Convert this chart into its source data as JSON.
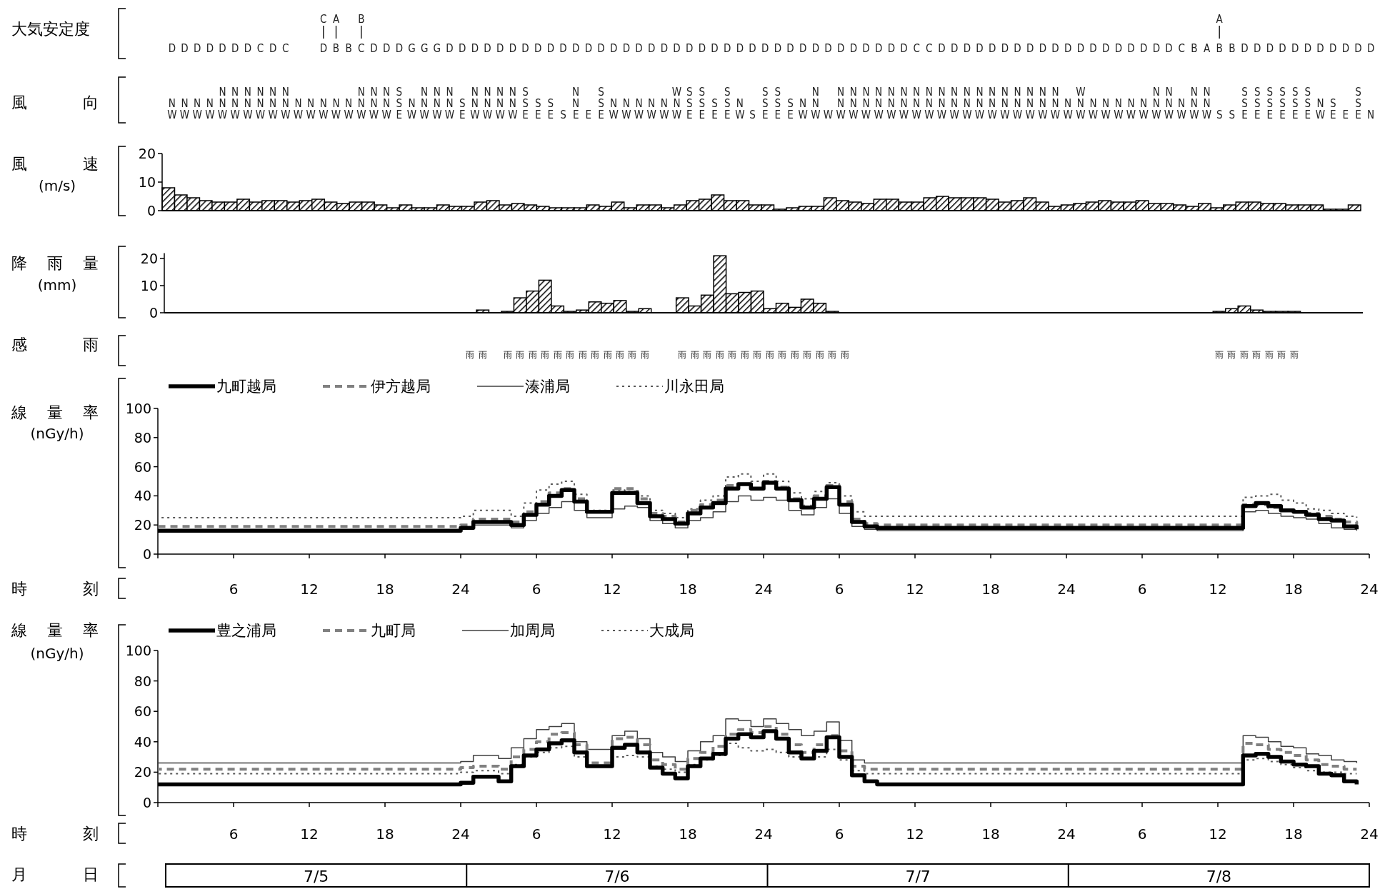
{
  "chart_data": [
    {
      "type": "other",
      "ylabel": "大気安定度",
      "cell_labels": [
        [
          null,
          null,
          null,
          null,
          null,
          null,
          null,
          null,
          null,
          null,
          null,
          null,
          "C",
          "A",
          null,
          "B",
          null,
          null,
          null,
          null,
          null,
          null,
          null,
          null,
          null,
          null,
          null,
          null,
          null,
          null,
          null,
          null,
          null,
          null,
          null,
          null,
          null,
          null,
          null,
          null,
          null,
          null,
          null,
          null,
          null,
          null,
          null,
          null,
          null,
          null,
          null,
          null,
          null,
          null,
          null,
          null,
          null,
          null,
          null,
          null,
          null,
          null,
          null,
          null,
          null,
          null,
          null,
          null,
          null,
          null,
          null,
          null,
          null,
          null,
          null,
          null,
          null,
          null,
          null,
          null,
          null,
          null,
          null,
          "A",
          null,
          null,
          null,
          null,
          null,
          null,
          null,
          null,
          null,
          null,
          null,
          null
        ],
        [
          "D",
          "D",
          "D",
          "D",
          "D",
          "D",
          "D",
          "C",
          "D",
          "C",
          null,
          null,
          "D",
          "B",
          "B",
          "C",
          "D",
          "D",
          "D",
          "G",
          "G",
          "G",
          "D",
          "D",
          "D",
          "D",
          "D",
          "D",
          "D",
          "D",
          "D",
          "D",
          "D",
          "D",
          "D",
          "D",
          "D",
          "D",
          "D",
          "D",
          "D",
          "D",
          "D",
          "D",
          "D",
          "D",
          "D",
          "D",
          "D",
          "D",
          "D",
          "D",
          "D",
          "D",
          "D",
          "D",
          "D",
          "D",
          "D",
          "C",
          "C",
          "D",
          "D",
          "D",
          "D",
          "D",
          "D",
          "D",
          "D",
          "D",
          "D",
          "D",
          "D",
          "D",
          "D",
          "D",
          "D",
          "D",
          "D",
          "D",
          "C",
          "B",
          "A",
          "B",
          "B",
          "D",
          "D",
          "D",
          "D",
          "D",
          "D",
          "D",
          "D",
          "D",
          "D",
          "D"
        ]
      ]
    },
    {
      "type": "other",
      "ylabel": "風向",
      "cell_labels": [
        [
          null,
          null,
          null,
          null,
          "N",
          "N",
          "N",
          "N",
          "N",
          "N",
          null,
          null,
          null,
          null,
          null,
          "N",
          "N",
          "N",
          "S",
          null,
          "N",
          "N",
          "N",
          null,
          "N",
          "N",
          "N",
          "N",
          "S",
          null,
          null,
          null,
          "N",
          null,
          "S",
          null,
          null,
          null,
          null,
          null,
          "W",
          "S",
          "S",
          null,
          "S",
          null,
          null,
          "S",
          "S",
          null,
          null,
          "N",
          null,
          "N",
          "N",
          "N",
          "N",
          "N",
          "N",
          "N",
          "N",
          "N",
          "N",
          "N",
          "N",
          "N",
          "N",
          "N",
          "N",
          "N",
          "N",
          null,
          "W",
          null,
          null,
          null,
          null,
          null,
          "N",
          "N",
          null,
          "N",
          "N",
          null,
          null,
          "S",
          "S",
          "S",
          "S",
          "S",
          "S",
          null,
          null,
          null,
          "S",
          null
        ],
        [
          "N",
          "N",
          "N",
          "N",
          "N",
          "N",
          "N",
          "N",
          "N",
          "N",
          "N",
          "N",
          "N",
          "N",
          "N",
          "N",
          "N",
          "N",
          "S",
          "N",
          "N",
          "N",
          "N",
          "S",
          "N",
          "N",
          "N",
          "N",
          "S",
          "S",
          "S",
          null,
          "N",
          null,
          "S",
          "N",
          "N",
          "N",
          "N",
          "N",
          "N",
          "S",
          "S",
          "S",
          "S",
          "N",
          null,
          "S",
          "S",
          "S",
          "N",
          "N",
          null,
          "N",
          "N",
          "N",
          "N",
          "N",
          "N",
          "N",
          "N",
          "N",
          "N",
          "N",
          "N",
          "N",
          "N",
          "N",
          "N",
          "N",
          "N",
          "N",
          "N",
          "N",
          "N",
          "N",
          "N",
          "N",
          "N",
          "N",
          "N",
          "N",
          "N",
          null,
          null,
          "S",
          "S",
          "S",
          "S",
          "S",
          "S",
          "N",
          "S",
          null,
          "S",
          null
        ],
        [
          "W",
          "W",
          "W",
          "W",
          "W",
          "W",
          "W",
          "W",
          "W",
          "W",
          "W",
          "W",
          "W",
          "W",
          "W",
          "W",
          "W",
          "W",
          "E",
          "W",
          "W",
          "W",
          "W",
          "E",
          "W",
          "W",
          "W",
          "W",
          "E",
          "E",
          "E",
          "S",
          "E",
          "E",
          "E",
          "W",
          "W",
          "W",
          "W",
          "W",
          "W",
          "E",
          "E",
          "E",
          "E",
          "W",
          "S",
          "E",
          "E",
          "E",
          "W",
          "W",
          "W",
          "W",
          "W",
          "W",
          "W",
          "W",
          "W",
          "W",
          "W",
          "W",
          "W",
          "W",
          "W",
          "W",
          "W",
          "W",
          "W",
          "W",
          "W",
          "W",
          "W",
          "W",
          "W",
          "W",
          "W",
          "W",
          "W",
          "W",
          "W",
          "W",
          "W",
          "S",
          "S",
          "E",
          "E",
          "E",
          "E",
          "E",
          "E",
          "W",
          "E",
          "E",
          "E",
          "N"
        ]
      ]
    },
    {
      "type": "bar",
      "ylabel": "風速\n(m/s)",
      "color": "#000000",
      "ylim": [
        0,
        20
      ],
      "yticks": [
        0,
        10,
        20
      ],
      "tick_labels": "y",
      "categories": [
        null,
        null,
        null,
        null,
        null,
        null,
        null,
        null,
        null,
        null,
        null,
        null,
        null,
        null,
        null,
        null,
        null,
        null,
        null,
        null,
        null,
        null,
        null,
        null,
        null,
        null,
        null,
        null,
        null,
        null,
        null,
        null,
        null,
        null,
        null,
        null,
        null,
        null,
        null,
        null,
        null,
        null,
        null,
        null,
        null,
        null,
        null,
        null,
        null,
        null,
        null,
        null,
        null,
        null,
        null,
        null,
        null,
        null,
        null,
        null,
        null,
        null,
        null,
        null,
        null,
        null,
        null,
        null,
        null,
        null,
        null,
        null,
        null,
        null,
        null,
        null,
        null,
        null,
        null,
        null,
        null,
        null,
        null,
        null,
        null,
        null,
        null,
        null,
        null,
        null,
        null,
        null,
        null,
        null,
        null,
        null
      ],
      "values": [
        8,
        5.5,
        4.5,
        3.5,
        3,
        3,
        4,
        3,
        3.5,
        3.5,
        3,
        3.5,
        4,
        3,
        2.5,
        3,
        3,
        2,
        1,
        2,
        1,
        1,
        2,
        1.5,
        1.5,
        3,
        3.5,
        2,
        2.5,
        2,
        1.5,
        1,
        1,
        1,
        2,
        1.5,
        3,
        1,
        2,
        2,
        1,
        2,
        3.5,
        4,
        5.5,
        3.5,
        3.5,
        2,
        2,
        0.5,
        1,
        1.5,
        1.5,
        4.5,
        3.5,
        3,
        2.5,
        4,
        4,
        3,
        3,
        4.5,
        5,
        4.5,
        4.5,
        4.5,
        4,
        3,
        3.5,
        4.5,
        3,
        1.5,
        2,
        2.5,
        3,
        3.5,
        3,
        3,
        3.5,
        2.5,
        2.5,
        2,
        1.5,
        2.5,
        1,
        2,
        3,
        3,
        2.5,
        2.5,
        2,
        2,
        2,
        0.5,
        0.5,
        2
      ]
    },
    {
      "type": "bar",
      "ylabel": "降雨量\n(mm)",
      "color": "#000000",
      "ylim": [
        0,
        22
      ],
      "yticks": [
        0,
        10,
        20
      ],
      "tick_labels": "y",
      "categories": [
        null,
        null,
        null,
        null,
        null,
        null,
        null,
        null,
        null,
        null,
        null,
        null,
        null,
        null,
        null,
        null,
        null,
        null,
        null,
        null,
        null,
        null,
        null,
        null,
        null,
        null,
        null,
        null,
        null,
        null,
        null,
        null,
        null,
        null,
        null,
        null,
        null,
        null,
        null,
        null,
        null,
        null,
        null,
        null,
        null,
        null,
        null,
        null,
        null,
        null,
        null,
        null,
        null,
        null,
        null,
        null,
        null,
        null,
        null,
        null,
        null,
        null,
        null,
        null,
        null,
        null,
        null,
        null,
        null,
        null,
        null,
        null,
        null,
        null,
        null,
        null,
        null,
        null,
        null,
        null,
        null,
        null,
        null,
        null,
        null,
        null,
        null,
        null,
        null,
        null,
        null,
        null,
        null,
        null,
        null,
        null
      ],
      "values": [
        0,
        0,
        0,
        0,
        0,
        0,
        0,
        0,
        0,
        0,
        0,
        0,
        0,
        0,
        0,
        0,
        0,
        0,
        0,
        0,
        0,
        0,
        0,
        0,
        0,
        1,
        0,
        0.5,
        5.5,
        8,
        12,
        2.5,
        0.5,
        1,
        4,
        3.5,
        4.5,
        0.5,
        1.5,
        0,
        0,
        5.5,
        2.5,
        6.5,
        21,
        7,
        7.5,
        8,
        1.5,
        3.5,
        2,
        5,
        3.5,
        0.5,
        0,
        0,
        0,
        0,
        0,
        0,
        0,
        0,
        0,
        0,
        0,
        0,
        0,
        0,
        0,
        0,
        0,
        0,
        0,
        0,
        0,
        0,
        0,
        0,
        0,
        0,
        0,
        0,
        0,
        0,
        0.5,
        1.5,
        2.5,
        1,
        0.5,
        0.5,
        0.5,
        0,
        0,
        0,
        0,
        0
      ]
    },
    {
      "type": "other",
      "ylabel": "感雨",
      "cell_labels": [
        [
          null,
          null,
          null,
          null,
          null,
          null,
          null,
          null,
          null,
          null,
          null,
          null,
          null,
          null,
          null,
          null,
          null,
          null,
          null,
          null,
          null,
          null,
          null,
          null,
          "雨",
          "雨",
          null,
          "雨",
          "雨",
          "雨",
          "雨",
          "雨",
          "雨",
          "雨",
          "雨",
          "雨",
          "雨",
          "雨",
          "雨",
          null,
          null,
          "雨",
          "雨",
          "雨",
          "雨",
          "雨",
          "雨",
          "雨",
          "雨",
          "雨",
          "雨",
          "雨",
          "雨",
          "雨",
          "雨",
          null,
          null,
          null,
          null,
          null,
          null,
          null,
          null,
          null,
          null,
          null,
          null,
          null,
          null,
          null,
          null,
          null,
          null,
          null,
          null,
          null,
          null,
          null,
          null,
          null,
          null,
          null,
          null,
          null,
          "雨",
          "雨",
          "雨",
          "雨",
          "雨",
          "雨",
          "雨",
          null,
          null,
          null,
          null,
          null
        ]
      ]
    },
    {
      "type": "step",
      "ylabel": "線量率\n(nGy/h)",
      "xlabel": "時刻",
      "legend": "top left",
      "ylim": [
        0,
        100
      ],
      "yticks": [
        0,
        20,
        40,
        60,
        80,
        100
      ],
      "xlim": [
        "--07-05T00:00",
        "--07-09T00:00"
      ],
      "xticks": [
        {
          "value": "--07-05T06:00",
          "label": "6"
        },
        {
          "value": "--07-05T12:00",
          "label": "12"
        },
        {
          "value": "--07-05T18:00",
          "label": "18"
        },
        {
          "value": "--07-06T00:00",
          "label": "24"
        },
        {
          "value": "--07-06T06:00",
          "label": "6"
        },
        {
          "value": "--07-06T12:00",
          "label": "12"
        },
        {
          "value": "--07-06T18:00",
          "label": "18"
        },
        {
          "value": "--07-07T00:00",
          "label": "24"
        },
        {
          "value": "--07-07T06:00",
          "label": "6"
        },
        {
          "value": "--07-07T12:00",
          "label": "12"
        },
        {
          "value": "--07-07T18:00",
          "label": "18"
        },
        {
          "value": "--07-08T00:00",
          "label": "24"
        },
        {
          "value": "--07-08T06:00",
          "label": "6"
        },
        {
          "value": "--07-08T12:00",
          "label": "12"
        },
        {
          "value": "--07-08T18:00",
          "label": "18"
        },
        {
          "value": "--07-09T00:00",
          "label": "24"
        }
      ],
      "x": [
        "--07-05T00:00",
        "--07-05T01:00",
        "--07-05T02:00",
        "--07-05T03:00",
        "--07-05T04:00",
        "--07-05T05:00",
        "--07-05T06:00",
        "--07-05T07:00",
        "--07-05T08:00",
        "--07-05T09:00",
        "--07-05T10:00",
        "--07-05T11:00",
        "--07-05T12:00",
        "--07-05T13:00",
        "--07-05T14:00",
        "--07-05T15:00",
        "--07-05T16:00",
        "--07-05T17:00",
        "--07-05T18:00",
        "--07-05T19:00",
        "--07-05T20:00",
        "--07-05T21:00",
        "--07-05T22:00",
        "--07-05T23:00",
        "--07-06T00:00",
        "--07-06T01:00",
        "--07-06T02:00",
        "--07-06T03:00",
        "--07-06T04:00",
        "--07-06T05:00",
        "--07-06T06:00",
        "--07-06T07:00",
        "--07-06T08:00",
        "--07-06T09:00",
        "--07-06T10:00",
        "--07-06T11:00",
        "--07-06T12:00",
        "--07-06T13:00",
        "--07-06T14:00",
        "--07-06T15:00",
        "--07-06T16:00",
        "--07-06T17:00",
        "--07-06T18:00",
        "--07-06T19:00",
        "--07-06T20:00",
        "--07-06T21:00",
        "--07-06T22:00",
        "--07-06T23:00",
        "--07-07T00:00",
        "--07-07T01:00",
        "--07-07T02:00",
        "--07-07T03:00",
        "--07-07T04:00",
        "--07-07T05:00",
        "--07-07T06:00",
        "--07-07T07:00",
        "--07-07T08:00",
        "--07-07T09:00",
        "--07-07T10:00",
        "--07-07T11:00",
        "--07-07T12:00",
        "--07-07T13:00",
        "--07-07T14:00",
        "--07-07T15:00",
        "--07-07T16:00",
        "--07-07T17:00",
        "--07-07T18:00",
        "--07-07T19:00",
        "--07-07T20:00",
        "--07-07T21:00",
        "--07-07T22:00",
        "--07-07T23:00",
        "--07-08T00:00",
        "--07-08T01:00",
        "--07-08T02:00",
        "--07-08T03:00",
        "--07-08T04:00",
        "--07-08T05:00",
        "--07-08T06:00",
        "--07-08T07:00",
        "--07-08T08:00",
        "--07-08T09:00",
        "--07-08T10:00",
        "--07-08T11:00",
        "--07-08T12:00",
        "--07-08T13:00",
        "--07-08T14:00",
        "--07-08T15:00",
        "--07-08T16:00",
        "--07-08T17:00",
        "--07-08T18:00",
        "--07-08T19:00",
        "--07-08T20:00",
        "--07-08T21:00",
        "--07-08T22:00",
        "--07-08T23:00"
      ],
      "series": [
        {
          "name": "九町越局",
          "color": "#000000",
          "line_style": "solid",
          "values": [
            16,
            16,
            16,
            16,
            16,
            16,
            16,
            16,
            16,
            16,
            16,
            16,
            16,
            16,
            16,
            16,
            16,
            16,
            16,
            16,
            16,
            16,
            16,
            16,
            18,
            22,
            22,
            22,
            20,
            27,
            34,
            40,
            44,
            36,
            29,
            29,
            42,
            42,
            35,
            26,
            24,
            21,
            28,
            32,
            35,
            45,
            48,
            45,
            49,
            45,
            37,
            32,
            38,
            46,
            34,
            22,
            19,
            18,
            18,
            18,
            18,
            18,
            18,
            18,
            18,
            18,
            18,
            18,
            18,
            18,
            18,
            18,
            18,
            18,
            18,
            18,
            18,
            18,
            18,
            18,
            18,
            18,
            18,
            18,
            18,
            18,
            33,
            35,
            33,
            30,
            29,
            27,
            24,
            23,
            19,
            17
          ]
        },
        {
          "name": "伊方越局",
          "color": "#808080",
          "line_style": "dashed",
          "values": [
            19,
            19,
            19,
            19,
            19,
            19,
            19,
            19,
            19,
            19,
            19,
            19,
            19,
            19,
            19,
            19,
            19,
            19,
            19,
            19,
            19,
            19,
            19,
            19,
            20,
            24,
            24,
            24,
            22,
            29,
            36,
            42,
            45,
            38,
            29,
            29,
            45,
            45,
            38,
            28,
            26,
            22,
            30,
            34,
            37,
            47,
            48,
            45,
            50,
            46,
            38,
            33,
            40,
            47,
            36,
            24,
            21,
            20,
            20,
            20,
            20,
            20,
            20,
            20,
            20,
            20,
            20,
            20,
            20,
            20,
            20,
            20,
            20,
            20,
            20,
            20,
            20,
            20,
            20,
            20,
            20,
            20,
            20,
            20,
            20,
            20,
            34,
            34,
            32,
            30,
            29,
            28,
            26,
            24,
            22,
            20
          ]
        },
        {
          "name": "湊浦局",
          "color": "#404040",
          "line_style": "solid",
          "values": [
            16,
            16,
            16,
            16,
            16,
            16,
            16,
            16,
            16,
            16,
            16,
            16,
            16,
            16,
            16,
            16,
            16,
            16,
            16,
            16,
            16,
            16,
            16,
            16,
            17,
            20,
            20,
            20,
            18,
            23,
            28,
            32,
            36,
            30,
            25,
            25,
            31,
            33,
            32,
            23,
            21,
            18,
            23,
            25,
            29,
            36,
            40,
            37,
            39,
            37,
            30,
            27,
            32,
            38,
            28,
            19,
            17,
            16,
            16,
            16,
            16,
            16,
            16,
            16,
            16,
            16,
            16,
            16,
            16,
            16,
            16,
            16,
            16,
            16,
            16,
            16,
            16,
            16,
            16,
            16,
            16,
            16,
            16,
            16,
            16,
            16,
            29,
            30,
            28,
            26,
            25,
            24,
            21,
            18,
            17,
            16
          ]
        },
        {
          "name": "川永田局",
          "color": "#595959",
          "line_style": "dotted",
          "values": [
            25,
            25,
            25,
            25,
            25,
            25,
            25,
            25,
            25,
            25,
            25,
            25,
            25,
            25,
            25,
            25,
            25,
            25,
            25,
            25,
            25,
            25,
            25,
            25,
            26,
            30,
            30,
            30,
            26,
            35,
            44,
            48,
            50,
            41,
            30,
            30,
            44,
            43,
            40,
            30,
            28,
            25,
            31,
            37,
            40,
            53,
            55,
            50,
            55,
            50,
            42,
            38,
            43,
            49,
            40,
            29,
            26,
            26,
            26,
            26,
            26,
            26,
            26,
            26,
            26,
            26,
            26,
            26,
            26,
            26,
            26,
            26,
            26,
            26,
            26,
            26,
            26,
            26,
            26,
            26,
            26,
            26,
            26,
            26,
            26,
            26,
            39,
            40,
            41,
            37,
            35,
            31,
            30,
            28,
            26,
            25
          ]
        }
      ]
    },
    {
      "type": "step",
      "ylabel": "線量率\n(nGy/h)",
      "xlabel": "時刻",
      "legend": "top left",
      "ylim": [
        0,
        100
      ],
      "yticks": [
        0,
        20,
        40,
        60,
        80,
        100
      ],
      "xlim": [
        "--07-05T00:00",
        "--07-09T00:00"
      ],
      "xticks": [
        {
          "value": "--07-05T06:00",
          "label": "6"
        },
        {
          "value": "--07-05T12:00",
          "label": "12"
        },
        {
          "value": "--07-05T18:00",
          "label": "18"
        },
        {
          "value": "--07-06T00:00",
          "label": "24"
        },
        {
          "value": "--07-06T06:00",
          "label": "6"
        },
        {
          "value": "--07-06T12:00",
          "label": "12"
        },
        {
          "value": "--07-06T18:00",
          "label": "18"
        },
        {
          "value": "--07-07T00:00",
          "label": "24"
        },
        {
          "value": "--07-07T06:00",
          "label": "6"
        },
        {
          "value": "--07-07T12:00",
          "label": "12"
        },
        {
          "value": "--07-07T18:00",
          "label": "18"
        },
        {
          "value": "--07-08T00:00",
          "label": "24"
        },
        {
          "value": "--07-08T06:00",
          "label": "6"
        },
        {
          "value": "--07-08T12:00",
          "label": "12"
        },
        {
          "value": "--07-08T18:00",
          "label": "18"
        },
        {
          "value": "--07-09T00:00",
          "label": "24"
        }
      ],
      "x": [
        "--07-05T00:00",
        "--07-05T01:00",
        "--07-05T02:00",
        "--07-05T03:00",
        "--07-05T04:00",
        "--07-05T05:00",
        "--07-05T06:00",
        "--07-05T07:00",
        "--07-05T08:00",
        "--07-05T09:00",
        "--07-05T10:00",
        "--07-05T11:00",
        "--07-05T12:00",
        "--07-05T13:00",
        "--07-05T14:00",
        "--07-05T15:00",
        "--07-05T16:00",
        "--07-05T17:00",
        "--07-05T18:00",
        "--07-05T19:00",
        "--07-05T20:00",
        "--07-05T21:00",
        "--07-05T22:00",
        "--07-05T23:00",
        "--07-06T00:00",
        "--07-06T01:00",
        "--07-06T02:00",
        "--07-06T03:00",
        "--07-06T04:00",
        "--07-06T05:00",
        "--07-06T06:00",
        "--07-06T07:00",
        "--07-06T08:00",
        "--07-06T09:00",
        "--07-06T10:00",
        "--07-06T11:00",
        "--07-06T12:00",
        "--07-06T13:00",
        "--07-06T14:00",
        "--07-06T15:00",
        "--07-06T16:00",
        "--07-06T17:00",
        "--07-06T18:00",
        "--07-06T19:00",
        "--07-06T20:00",
        "--07-06T21:00",
        "--07-06T22:00",
        "--07-06T23:00",
        "--07-07T00:00",
        "--07-07T01:00",
        "--07-07T02:00",
        "--07-07T03:00",
        "--07-07T04:00",
        "--07-07T05:00",
        "--07-07T06:00",
        "--07-07T07:00",
        "--07-07T08:00",
        "--07-07T09:00",
        "--07-07T10:00",
        "--07-07T11:00",
        "--07-07T12:00",
        "--07-07T13:00",
        "--07-07T14:00",
        "--07-07T15:00",
        "--07-07T16:00",
        "--07-07T17:00",
        "--07-07T18:00",
        "--07-07T19:00",
        "--07-07T20:00",
        "--07-07T21:00",
        "--07-07T22:00",
        "--07-07T23:00",
        "--07-08T00:00",
        "--07-08T01:00",
        "--07-08T02:00",
        "--07-08T03:00",
        "--07-08T04:00",
        "--07-08T05:00",
        "--07-08T06:00",
        "--07-08T07:00",
        "--07-08T08:00",
        "--07-08T09:00",
        "--07-08T10:00",
        "--07-08T11:00",
        "--07-08T12:00",
        "--07-08T13:00",
        "--07-08T14:00",
        "--07-08T15:00",
        "--07-08T16:00",
        "--07-08T17:00",
        "--07-08T18:00",
        "--07-08T19:00",
        "--07-08T20:00",
        "--07-08T21:00",
        "--07-08T22:00",
        "--07-08T23:00"
      ],
      "series": [
        {
          "name": "豊之浦局",
          "color": "#000000",
          "line_style": "solid",
          "values": [
            12,
            12,
            12,
            12,
            12,
            12,
            12,
            12,
            12,
            12,
            12,
            12,
            12,
            12,
            12,
            12,
            12,
            12,
            12,
            12,
            12,
            12,
            12,
            12,
            13,
            17,
            17,
            14,
            24,
            31,
            35,
            39,
            41,
            33,
            24,
            24,
            36,
            38,
            33,
            23,
            19,
            16,
            24,
            29,
            32,
            42,
            45,
            43,
            47,
            42,
            33,
            29,
            34,
            43,
            30,
            18,
            14,
            12,
            12,
            12,
            12,
            12,
            12,
            12,
            12,
            12,
            12,
            12,
            12,
            12,
            12,
            12,
            12,
            12,
            12,
            12,
            12,
            12,
            12,
            12,
            12,
            12,
            12,
            12,
            12,
            12,
            31,
            32,
            30,
            27,
            25,
            24,
            19,
            18,
            14,
            12
          ]
        },
        {
          "name": "九町局",
          "color": "#808080",
          "line_style": "dashed",
          "values": [
            22,
            22,
            22,
            22,
            22,
            22,
            22,
            22,
            22,
            22,
            22,
            22,
            22,
            22,
            22,
            22,
            22,
            22,
            22,
            22,
            22,
            22,
            22,
            22,
            23,
            24,
            24,
            22,
            30,
            35,
            40,
            45,
            46,
            38,
            26,
            26,
            42,
            43,
            38,
            28,
            25,
            22,
            29,
            33,
            37,
            45,
            48,
            46,
            50,
            45,
            38,
            33,
            38,
            44,
            34,
            24,
            22,
            22,
            22,
            22,
            22,
            22,
            22,
            22,
            22,
            22,
            22,
            22,
            22,
            22,
            22,
            22,
            22,
            22,
            22,
            22,
            22,
            22,
            22,
            22,
            22,
            22,
            22,
            22,
            22,
            22,
            39,
            38,
            35,
            33,
            31,
            28,
            25,
            24,
            22,
            22
          ]
        },
        {
          "name": "加周局",
          "color": "#404040",
          "line_style": "solid",
          "values": [
            26,
            26,
            26,
            26,
            26,
            26,
            26,
            26,
            26,
            26,
            26,
            26,
            26,
            26,
            26,
            26,
            26,
            26,
            26,
            26,
            26,
            26,
            26,
            26,
            27,
            31,
            31,
            29,
            36,
            42,
            48,
            50,
            52,
            40,
            35,
            35,
            44,
            47,
            42,
            33,
            30,
            27,
            34,
            40,
            44,
            55,
            54,
            50,
            55,
            52,
            48,
            44,
            47,
            53,
            41,
            28,
            26,
            26,
            26,
            26,
            26,
            26,
            26,
            26,
            26,
            26,
            26,
            26,
            26,
            26,
            26,
            26,
            26,
            26,
            26,
            26,
            26,
            26,
            26,
            26,
            26,
            26,
            26,
            26,
            26,
            26,
            44,
            43,
            40,
            37,
            36,
            32,
            31,
            28,
            27,
            26
          ]
        },
        {
          "name": "大成局",
          "color": "#595959",
          "line_style": "dotted",
          "values": [
            19,
            19,
            19,
            19,
            19,
            19,
            19,
            19,
            19,
            19,
            19,
            19,
            19,
            19,
            19,
            19,
            19,
            19,
            19,
            19,
            19,
            19,
            19,
            19,
            20,
            21,
            21,
            19,
            25,
            30,
            33,
            36,
            37,
            30,
            24,
            24,
            30,
            31,
            30,
            24,
            22,
            20,
            25,
            28,
            31,
            39,
            36,
            34,
            35,
            33,
            30,
            29,
            30,
            35,
            28,
            21,
            19,
            19,
            19,
            19,
            19,
            19,
            19,
            19,
            19,
            19,
            19,
            19,
            19,
            19,
            19,
            19,
            19,
            19,
            19,
            19,
            19,
            19,
            19,
            19,
            19,
            19,
            19,
            19,
            19,
            19,
            28,
            29,
            27,
            25,
            23,
            21,
            20,
            20,
            19,
            19
          ]
        }
      ]
    },
    {
      "type": "other",
      "ylabel": "月日",
      "categories": [
        "7/5",
        "7/6",
        "7/7",
        "7/8"
      ]
    }
  ]
}
